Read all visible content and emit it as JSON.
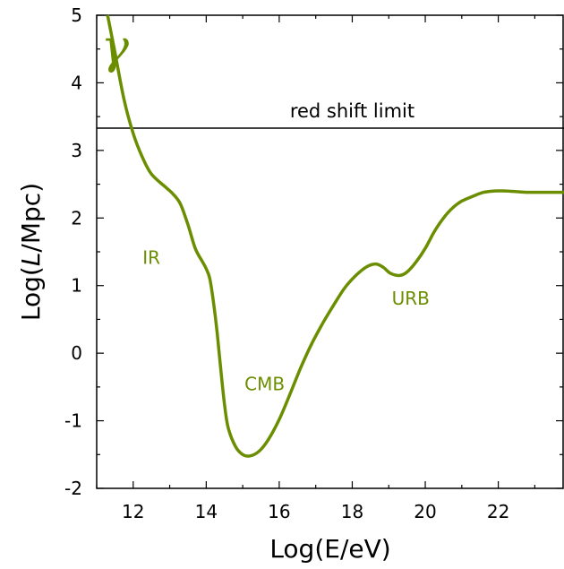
{
  "chart_data": {
    "type": "line",
    "xlabel": "Log(E/eV)",
    "ylabel_prefix": "Log(",
    "ylabel_italic": "L",
    "ylabel_suffix": "/Mpc)",
    "xlim": [
      11,
      23.8
    ],
    "ylim": [
      -2,
      5
    ],
    "x_ticks": [
      12,
      14,
      16,
      18,
      20,
      22
    ],
    "y_ticks": [
      -2,
      -1,
      0,
      1,
      2,
      3,
      4,
      5
    ],
    "grid": false,
    "series_color": "#6b8e00",
    "series": [
      {
        "x": [
          11.3,
          11.5,
          11.75,
          12.0,
          12.25,
          12.5,
          12.9,
          13.1,
          13.3,
          13.5,
          13.7,
          13.9,
          14.0,
          14.1,
          14.2,
          14.3,
          14.4,
          14.5,
          14.6,
          14.8,
          15.0,
          15.2,
          15.45,
          15.7,
          16.0,
          16.3,
          16.6,
          16.9,
          17.2,
          17.5,
          17.8,
          18.1,
          18.4,
          18.65,
          18.85,
          19.05,
          19.3,
          19.5,
          19.75,
          20.0,
          20.25,
          20.5,
          20.75,
          21.0,
          21.3,
          21.6,
          21.9,
          22.2,
          22.5,
          22.8,
          23.1,
          23.4,
          23.8
        ],
        "y": [
          5.0,
          4.45,
          3.75,
          3.25,
          2.9,
          2.65,
          2.45,
          2.35,
          2.2,
          1.9,
          1.55,
          1.35,
          1.25,
          1.1,
          0.75,
          0.3,
          -0.25,
          -0.75,
          -1.1,
          -1.38,
          -1.5,
          -1.52,
          -1.45,
          -1.28,
          -0.98,
          -0.6,
          -0.2,
          0.15,
          0.45,
          0.72,
          0.97,
          1.15,
          1.28,
          1.32,
          1.27,
          1.18,
          1.15,
          1.2,
          1.35,
          1.55,
          1.8,
          2.0,
          2.15,
          2.25,
          2.32,
          2.38,
          2.4,
          2.4,
          2.39,
          2.38,
          2.38,
          2.38,
          2.38
        ]
      }
    ],
    "hline": {
      "y": 3.33,
      "label": "red shift limit"
    },
    "annotations": [
      {
        "text": "γ",
        "x": 11.5,
        "y": 4.3,
        "style": "gamma"
      },
      {
        "text": "IR",
        "x": 12.5,
        "y": 1.32
      },
      {
        "text": "CMB",
        "x": 15.6,
        "y": -0.55
      },
      {
        "text": "URB",
        "x": 19.6,
        "y": 0.72
      }
    ]
  }
}
